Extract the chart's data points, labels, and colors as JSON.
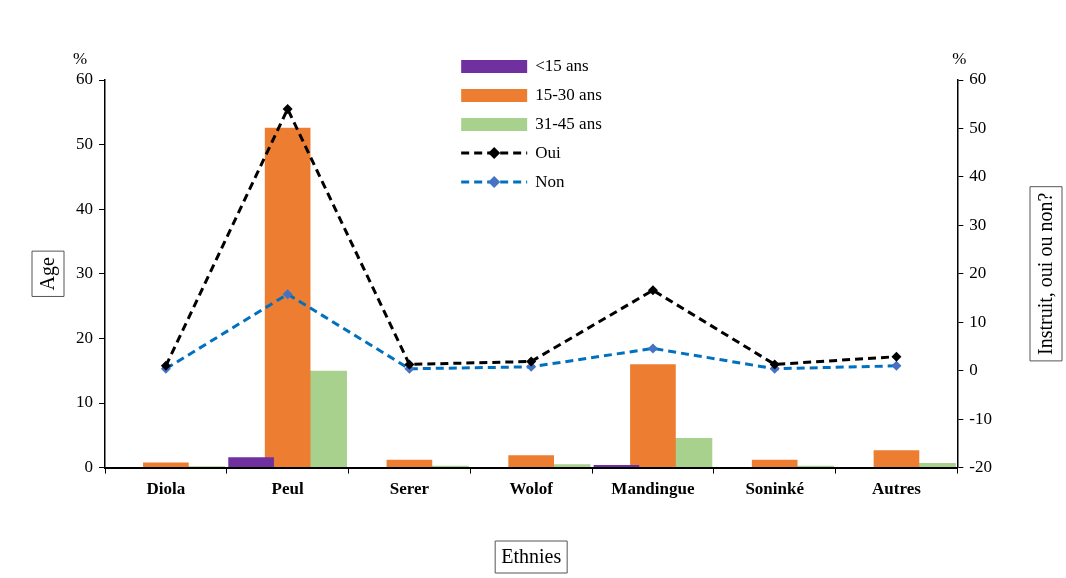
{
  "chart_data": {
    "type": "bar",
    "xlabel": "Ethnies",
    "ylabel": "Age",
    "y2label": "Instruit, oui ou non?",
    "categories": [
      "Diola",
      "Peul",
      "Serer",
      "Wolof",
      "Mandingue",
      "Soninké",
      "Autres"
    ],
    "series": [
      {
        "name": "<15 ans",
        "color": "#7030a0",
        "values": [
          0,
          1.6,
          0,
          0,
          0.4,
          0,
          0
        ]
      },
      {
        "name": "15-30 ans",
        "color": "#ed7d31",
        "values": [
          0.8,
          52.6,
          1.2,
          1.9,
          16.0,
          1.2,
          2.7
        ]
      },
      {
        "name": "31-45 ans",
        "color": "#a9d18e",
        "values": [
          0.2,
          15.0,
          0.3,
          0.5,
          4.6,
          0.3,
          0.7
        ]
      },
      {
        "name": "Oui",
        "type": "line",
        "axis": "y2",
        "color": "#000000",
        "values": [
          1.0,
          54.0,
          1.3,
          1.9,
          16.6,
          1.3,
          2.9
        ]
      },
      {
        "name": "Non",
        "type": "line",
        "axis": "y2",
        "color": "#0070c0",
        "values": [
          0.4,
          15.8,
          0.4,
          0.8,
          4.6,
          0.4,
          1.0
        ]
      }
    ],
    "ylim": [
      0,
      60
    ],
    "yticks": [
      0,
      10,
      20,
      30,
      40,
      50,
      60
    ],
    "y2lim": [
      -20,
      60
    ],
    "y2ticks": [
      -20,
      -10,
      0,
      10,
      20,
      30,
      40,
      50,
      60
    ],
    "annotations": [
      "%",
      "%"
    ],
    "grid": false,
    "legend": "top",
    "marker": "diamond",
    "line_style": "dashed"
  }
}
